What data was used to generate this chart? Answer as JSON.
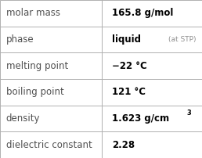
{
  "rows": [
    {
      "label": "molar mass",
      "value": "165.8 g/mol",
      "superscript": null,
      "extra": null
    },
    {
      "label": "phase",
      "value": "liquid",
      "superscript": null,
      "extra": "(at STP)"
    },
    {
      "label": "melting point",
      "value": "−22 °C",
      "superscript": null,
      "extra": null
    },
    {
      "label": "boiling point",
      "value": "121 °C",
      "superscript": null,
      "extra": null
    },
    {
      "label": "density",
      "value": "1.623 g/cm",
      "superscript": "3",
      "extra": null
    },
    {
      "label": "dielectric constant",
      "value": "2.28",
      "superscript": null,
      "extra": null
    }
  ],
  "background_color": "#ffffff",
  "border_color": "#b0b0b0",
  "divider_color": "#b0b0b0",
  "label_color": "#505050",
  "value_color": "#000000",
  "extra_color": "#909090",
  "col_split": 0.505,
  "label_fontsize": 8.5,
  "value_fontsize": 8.5,
  "extra_fontsize": 6.5,
  "super_fontsize": 6.0
}
